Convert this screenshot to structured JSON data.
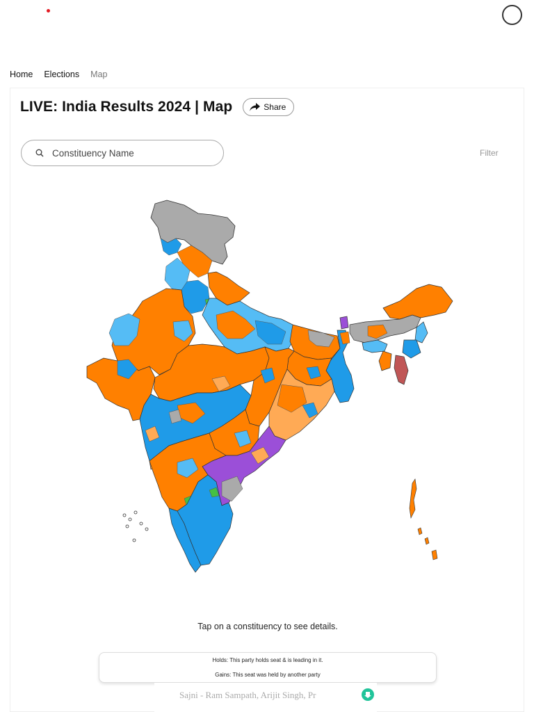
{
  "breadcrumb": [
    {
      "label": "Home"
    },
    {
      "label": "Elections"
    },
    {
      "label": "Map"
    }
  ],
  "header": {
    "title": "LIVE: India Results 2024 | Map",
    "share_label": "Share"
  },
  "search": {
    "placeholder": "Constituency Name"
  },
  "filter_label": "Filter",
  "hint": "Tap on a constituency to see details.",
  "legend": {
    "holds": "Holds: This party holds seat & is leading in it.",
    "gains": "Gains: This seat was held by another party"
  },
  "music_bar": {
    "text": "Sajni - Ram Sampath, Arijit Singh, Pr"
  },
  "colors": {
    "orange": "#ff8000",
    "light_orange": "#ffaa55",
    "blue": "#1f9be8",
    "light_blue": "#55bcf5",
    "grey": "#aaaaaa",
    "purple": "#9b4fd8",
    "brown": "#c05656",
    "green": "#44c045",
    "brand_red": "#e31b23"
  }
}
